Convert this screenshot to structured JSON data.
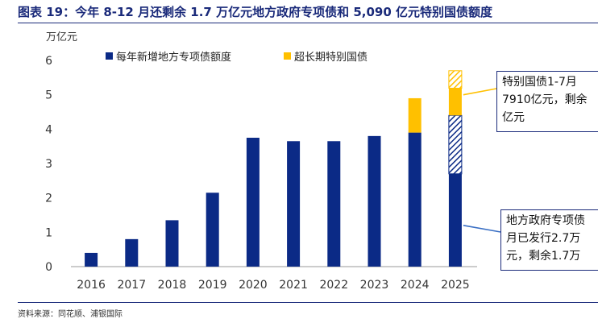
{
  "header": {
    "title": "图表 19：今年 8-12 月还剩余 1.7 万亿元地方政府专项债和 5,090 亿元特别国债额度"
  },
  "footer": {
    "source": "资料来源：同花顺、浦银国际"
  },
  "colors": {
    "navy": "#0b2a86",
    "gold": "#ffc000",
    "title": "#1a2a7a"
  },
  "callouts": {
    "top": "特别国债1-7月\n7910亿元，剩余\n亿元",
    "bottom": "地方政府专项债\n月已发行2.7万\n元，剩余1.7万"
  },
  "chart_data": {
    "type": "bar",
    "stacked": true,
    "ylabel": "万亿元",
    "ylim": [
      0,
      6
    ],
    "yticks": [
      0,
      1,
      2,
      3,
      4,
      5,
      6
    ],
    "categories": [
      "2016",
      "2017",
      "2018",
      "2019",
      "2020",
      "2021",
      "2022",
      "2023",
      "2024",
      "2025"
    ],
    "series": [
      {
        "name": "每年新增地方专项债额度",
        "color": "#0b2a86",
        "values": [
          0.4,
          0.8,
          1.35,
          2.15,
          3.75,
          3.65,
          3.65,
          3.8,
          3.9,
          4.4
        ]
      },
      {
        "name": "超长期特别国债",
        "color": "#ffc000",
        "values": [
          0,
          0,
          0,
          0,
          0,
          0,
          0,
          0,
          1.0,
          1.3
        ]
      }
    ],
    "remaining_2025": {
      "local_special_bond": 1.7,
      "special_treasury": 0.509
    },
    "legend_position": "top-center",
    "grid": false
  }
}
